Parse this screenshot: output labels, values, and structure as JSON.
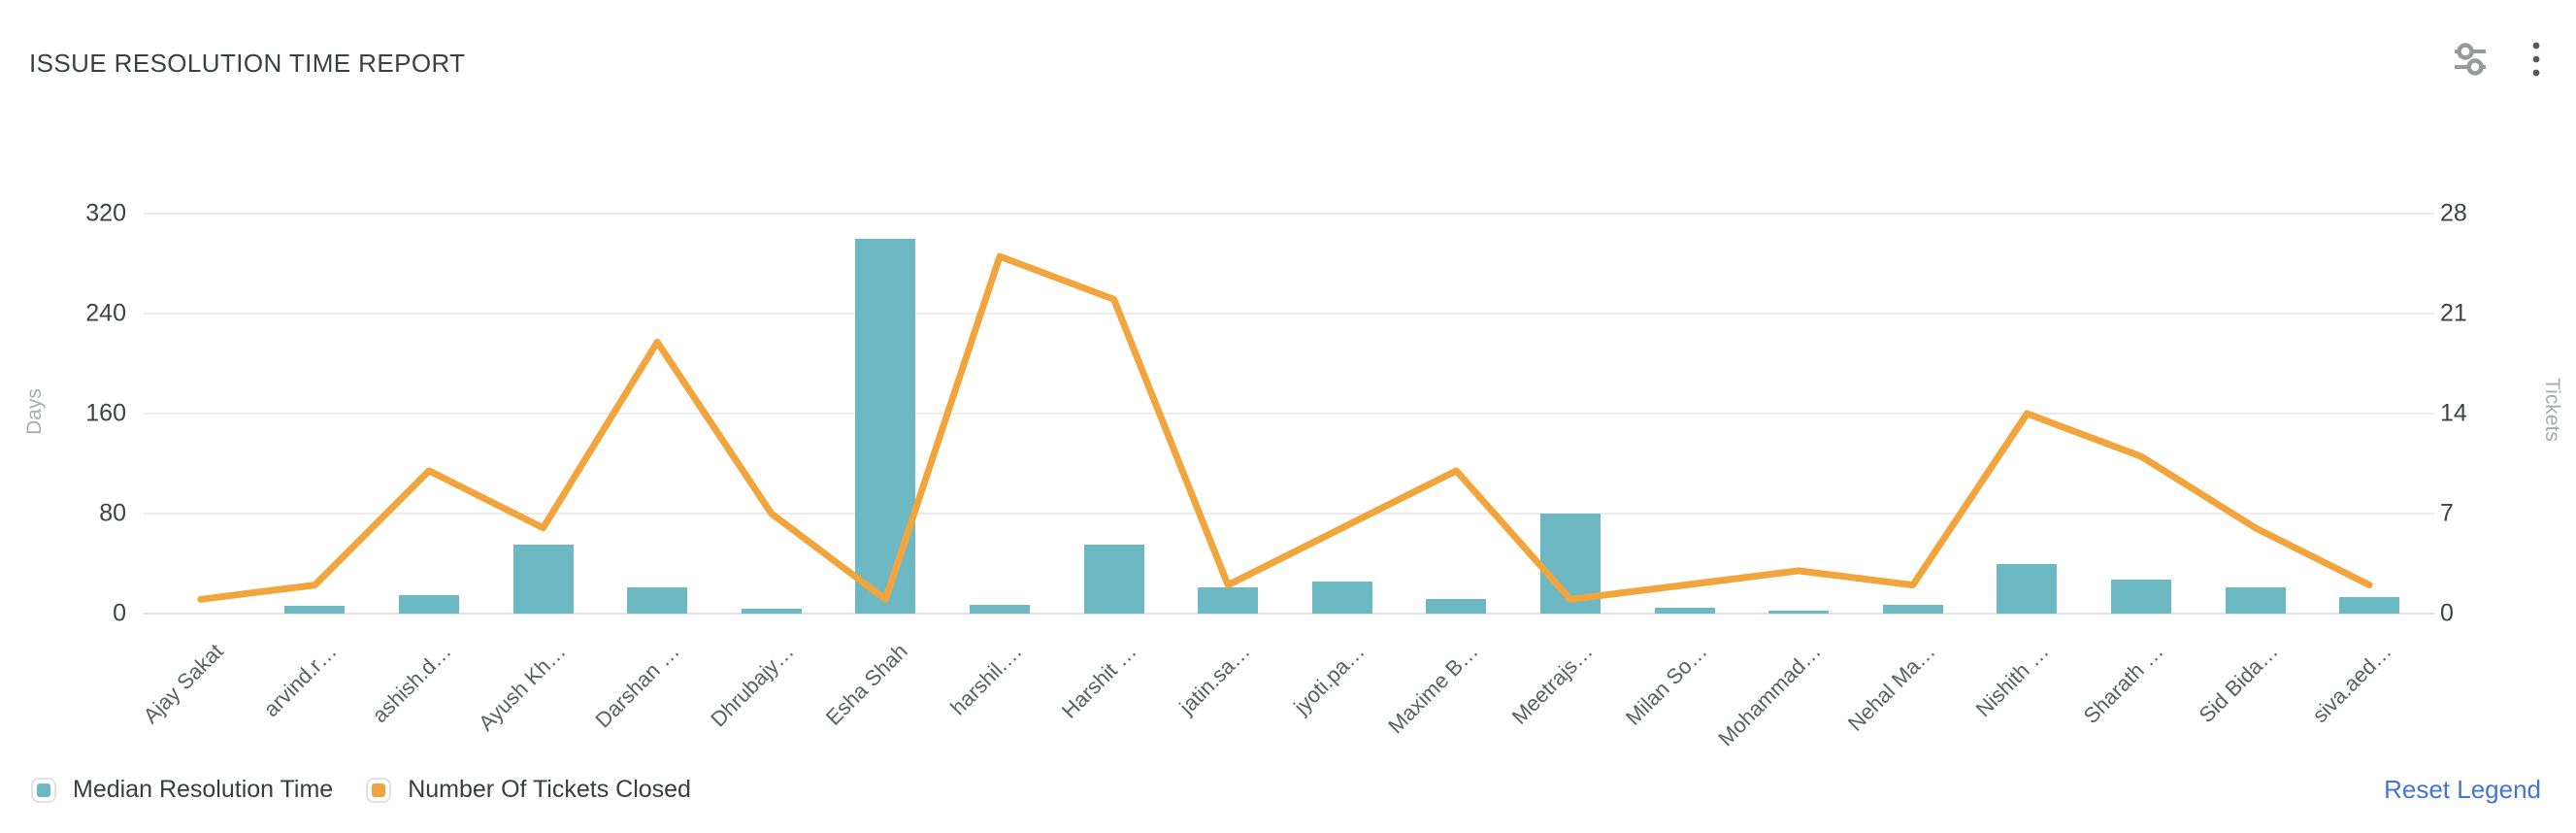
{
  "header": {
    "title": "ISSUE RESOLUTION TIME REPORT",
    "icons": {
      "filter": "sliders-icon",
      "menu": "kebab-menu-icon"
    }
  },
  "chart_data": {
    "type": "bar+line",
    "title": "ISSUE RESOLUTION TIME REPORT",
    "categories": [
      "Ajay Sakat",
      "arvind.r…",
      "ashish.d…",
      "Ayush Kh…",
      "Darshan …",
      "Dhrubajy…",
      "Esha Shah",
      "harshil.…",
      "Harshit …",
      "jatin.sa…",
      "jyoti.pa…",
      "Maxime B…",
      "Meetrajs…",
      "Milan So…",
      "Mohammad…",
      "Nehal Ma…",
      "Nishith …",
      "Sharath …",
      "Sid Bida…",
      "siva.aed…"
    ],
    "series": [
      {
        "name": "Median Resolution Time",
        "type": "bar",
        "axis": "left",
        "color": "#6db9c3",
        "values": [
          0,
          6,
          15,
          55,
          21,
          4,
          300,
          7,
          55,
          21,
          26,
          12,
          80,
          5,
          2,
          7,
          40,
          27,
          21,
          13
        ]
      },
      {
        "name": "Number Of Tickets Closed",
        "type": "line",
        "axis": "right",
        "color": "#f1a53c",
        "values": [
          1,
          2,
          10,
          6,
          19,
          7,
          1,
          25,
          22,
          2,
          6,
          10,
          1,
          2,
          3,
          2,
          14,
          11,
          6,
          2
        ]
      }
    ],
    "left_axis": {
      "label": "Days",
      "ticks": [
        0,
        80,
        160,
        240,
        320
      ],
      "range": [
        0,
        320
      ]
    },
    "right_axis": {
      "label": "Tickets",
      "ticks": [
        0,
        7,
        14,
        21,
        28
      ],
      "range": [
        0,
        28
      ]
    },
    "grid": true,
    "legend_position": "bottom-left"
  },
  "legend": {
    "items": [
      {
        "label": "Median Resolution Time",
        "color": "#6db9c3"
      },
      {
        "label": "Number Of Tickets Closed",
        "color": "#f0a43c"
      }
    ],
    "reset_label": "Reset Legend"
  }
}
